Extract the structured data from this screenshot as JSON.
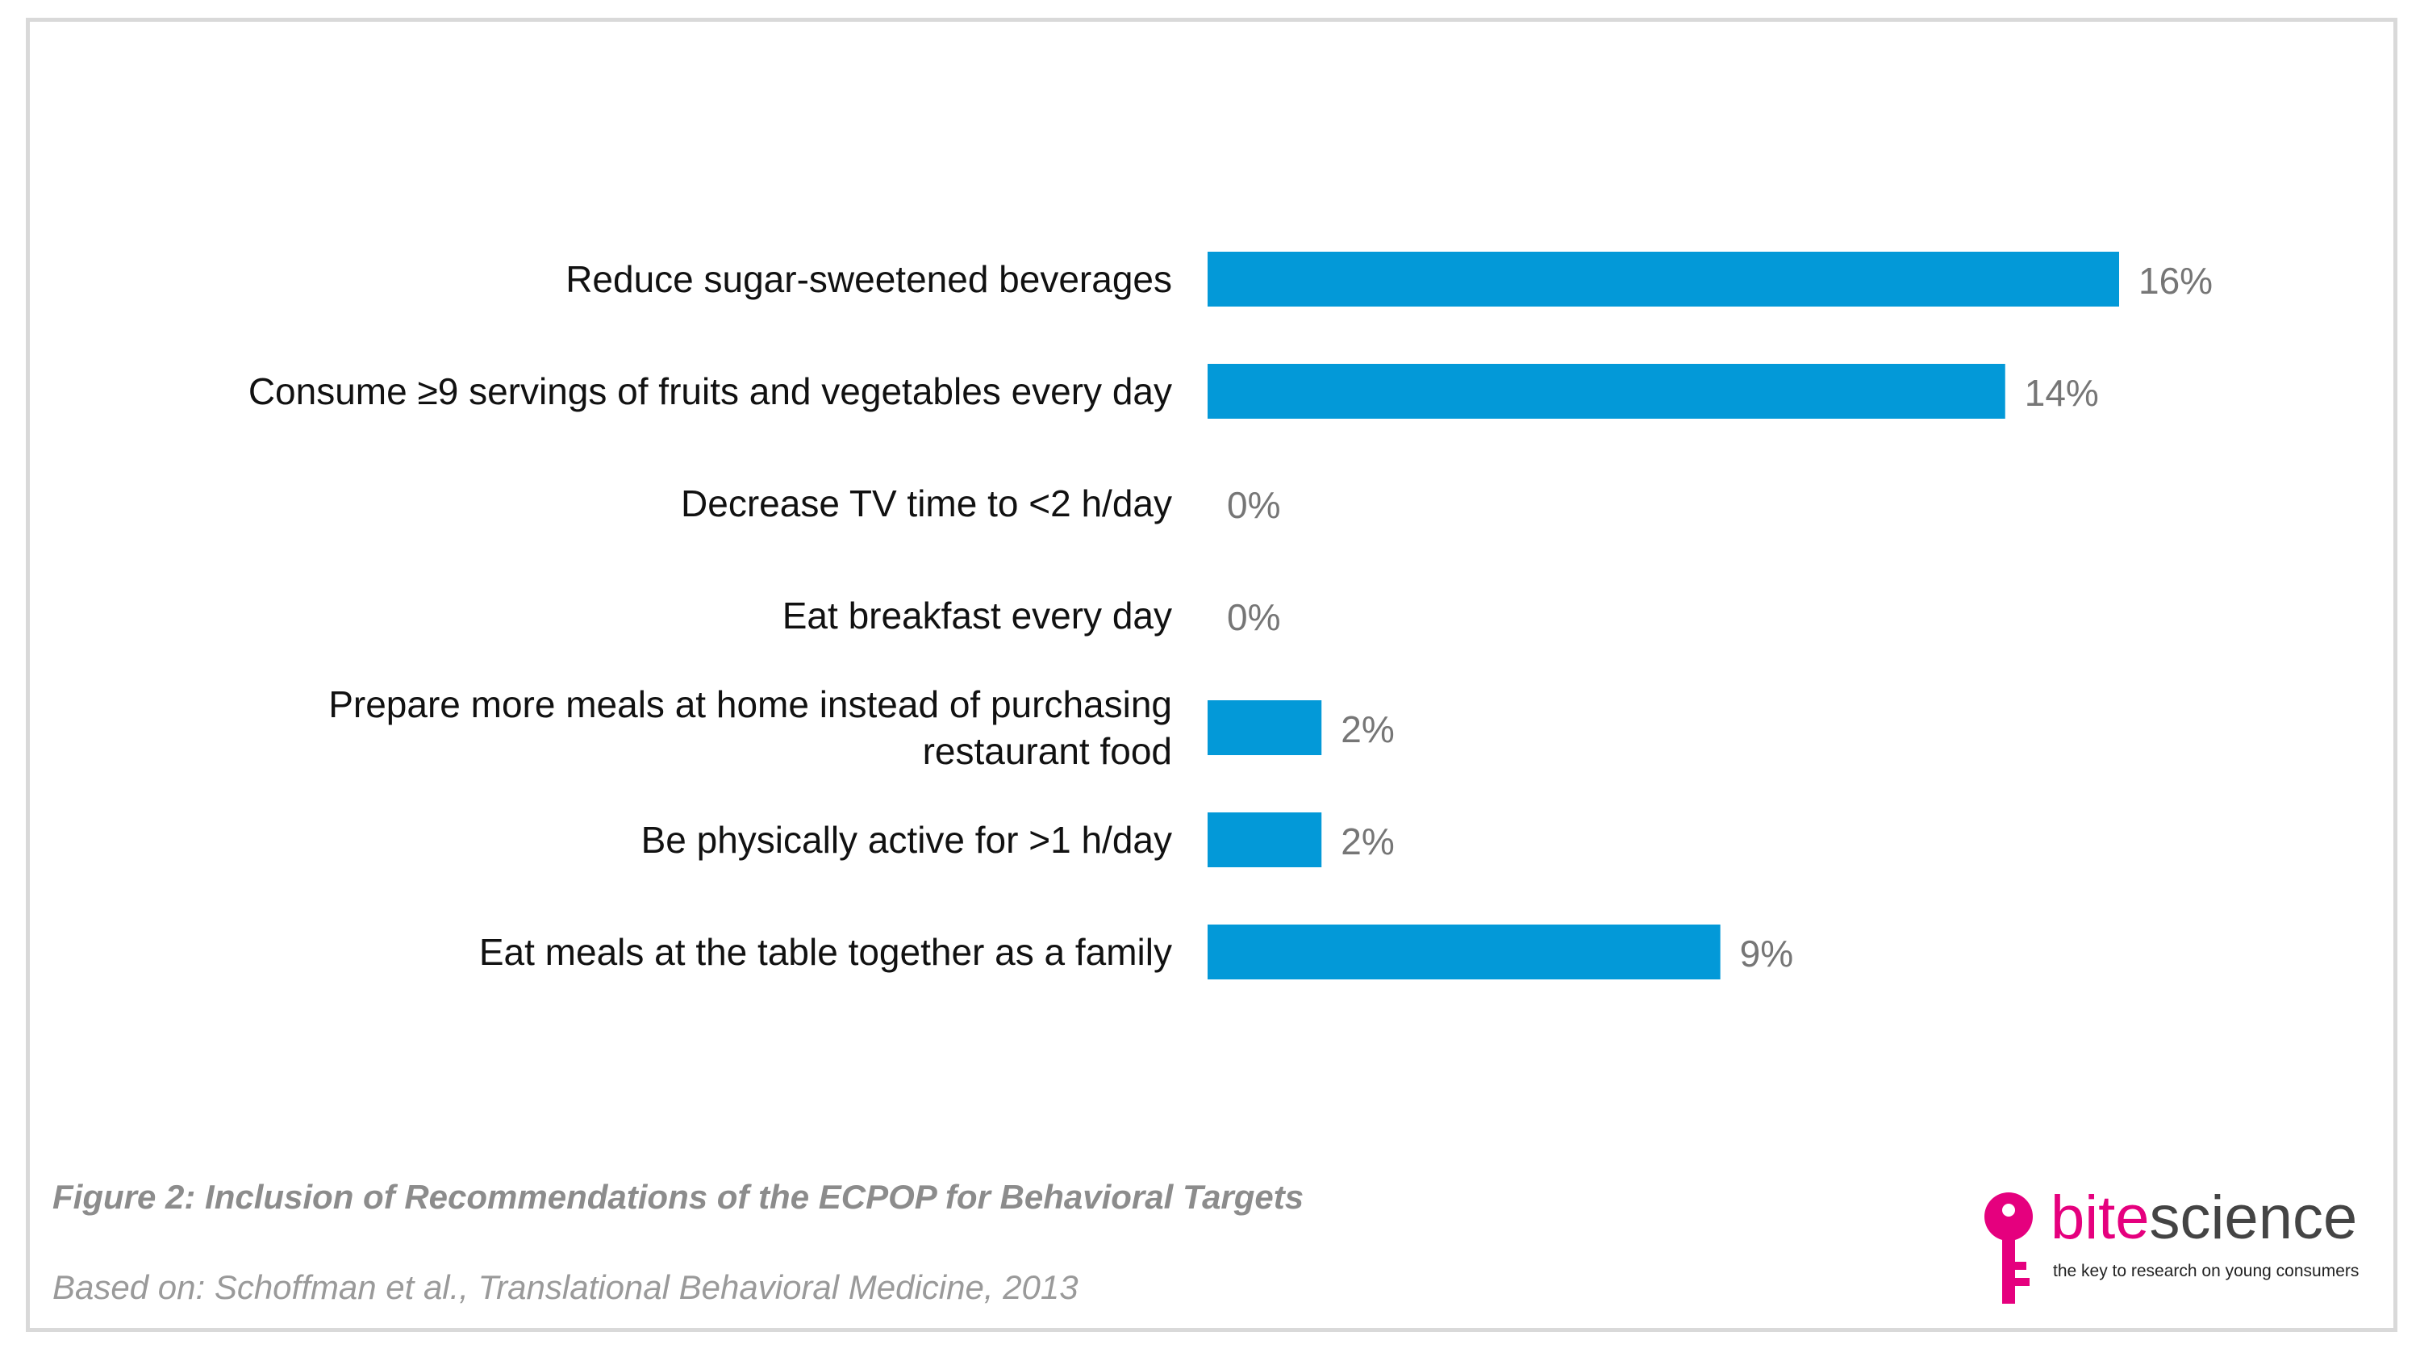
{
  "chart_data": {
    "type": "bar",
    "orientation": "horizontal",
    "categories": [
      "Reduce sugar-sweetened beverages",
      "Consume ≥9 servings of fruits and vegetables every day",
      "Decrease TV time to <2 h/day",
      "Eat breakfast every day",
      "Prepare more meals at home instead of purchasing restaurant food",
      "Be physically active for >1 h/day",
      "Eat meals at the table together as a family"
    ],
    "category_lines": [
      [
        "Reduce sugar-sweetened beverages"
      ],
      [
        "Consume ≥9 servings of fruits and vegetables every day"
      ],
      [
        "Decrease TV time to <2 h/day"
      ],
      [
        "Eat breakfast every day"
      ],
      [
        "Prepare more meals at home instead of purchasing",
        "restaurant food"
      ],
      [
        "Be physically active for >1 h/day"
      ],
      [
        "Eat meals at the table together as a family"
      ]
    ],
    "values": [
      16,
      14,
      0,
      0,
      2,
      2,
      9
    ],
    "value_labels": [
      "16%",
      "14%",
      "0%",
      "0%",
      "2%",
      "2%",
      "9%"
    ],
    "unit": "%",
    "xlim": [
      0,
      16
    ],
    "bar_color": "#0399d8",
    "grid": false,
    "legend": "none"
  },
  "caption": {
    "title": "Figure 2: Inclusion of Recommendations of the ECPOP for Behavioral Targets",
    "source": "Based on: Schoffman et al., Translational Behavioral Medicine, 2013"
  },
  "logo": {
    "word_part1": "bite",
    "word_part2": "science",
    "tagline": "the key to research on young consumers",
    "brand_color": "#e5007e",
    "icon": "key-icon"
  }
}
